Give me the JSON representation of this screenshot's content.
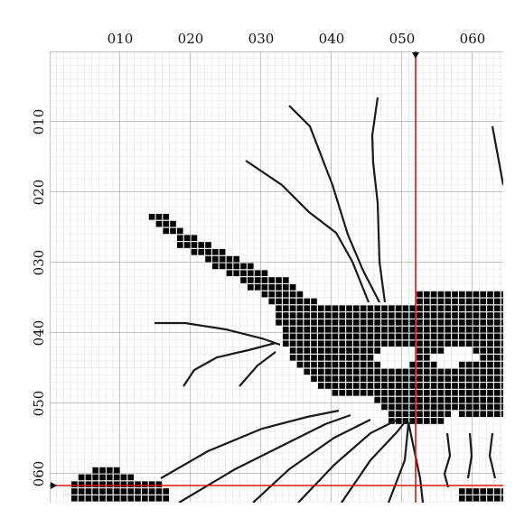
{
  "column_labels": [
    "010",
    "020",
    "030",
    "040",
    "050",
    "060"
  ],
  "row_labels": [
    "010",
    "020",
    "030",
    "040",
    "050",
    "060"
  ]
}
